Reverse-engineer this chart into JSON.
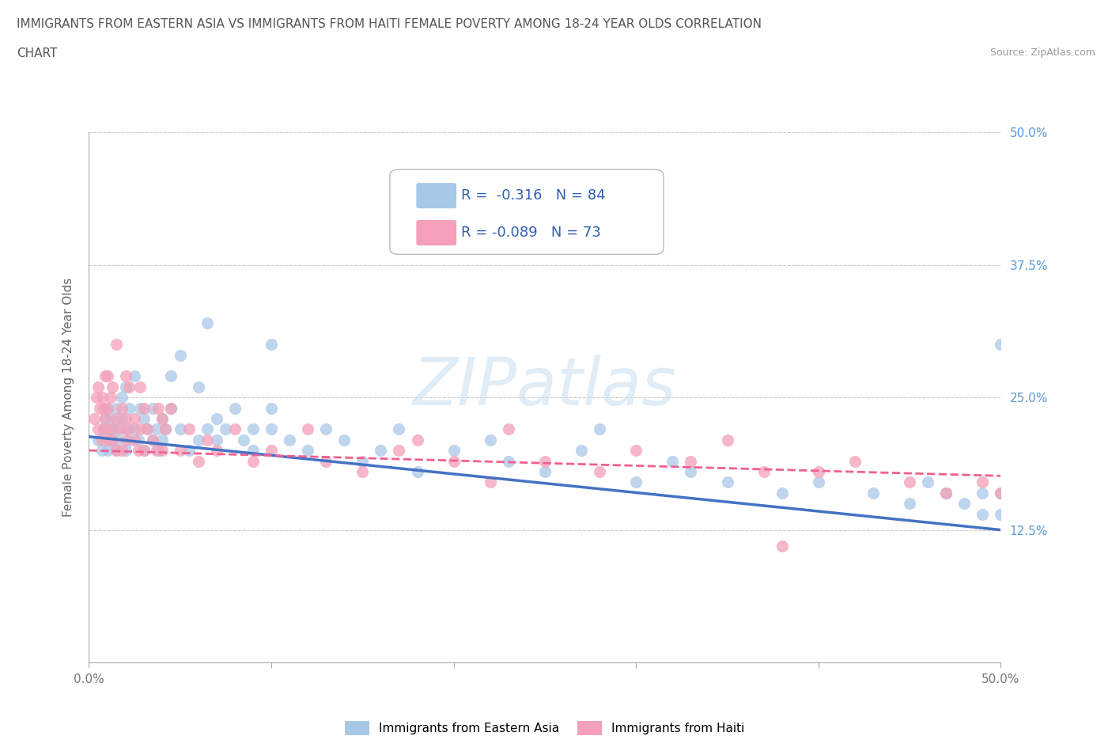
{
  "title_line1": "IMMIGRANTS FROM EASTERN ASIA VS IMMIGRANTS FROM HAITI FEMALE POVERTY AMONG 18-24 YEAR OLDS CORRELATION",
  "title_line2": "CHART",
  "source_text": "Source: ZipAtlas.com",
  "ylabel": "Female Poverty Among 18-24 Year Olds",
  "xlim": [
    0.0,
    0.5
  ],
  "ylim": [
    0.0,
    0.5
  ],
  "yticks": [
    0.0,
    0.125,
    0.25,
    0.375,
    0.5
  ],
  "right_yticklabels": [
    "",
    "12.5%",
    "25.0%",
    "37.5%",
    "50.0%"
  ],
  "hlines": [
    0.125,
    0.25,
    0.375,
    0.5
  ],
  "r_eastern_asia": -0.316,
  "n_eastern_asia": 84,
  "r_haiti": -0.089,
  "n_haiti": 73,
  "eastern_asia_color": "#a8c8e8",
  "haiti_color": "#f4a0b8",
  "eastern_asia_line_color": "#4472c4",
  "haiti_line_color": "#f06090",
  "watermark": "ZIPatlas",
  "eastern_asia_x": [
    0.005,
    0.007,
    0.008,
    0.009,
    0.01,
    0.01,
    0.01,
    0.012,
    0.012,
    0.013,
    0.015,
    0.015,
    0.015,
    0.016,
    0.018,
    0.018,
    0.02,
    0.02,
    0.02,
    0.022,
    0.022,
    0.025,
    0.025,
    0.027,
    0.028,
    0.03,
    0.03,
    0.032,
    0.035,
    0.035,
    0.037,
    0.038,
    0.04,
    0.04,
    0.042,
    0.045,
    0.045,
    0.05,
    0.05,
    0.055,
    0.06,
    0.06,
    0.065,
    0.065,
    0.07,
    0.07,
    0.075,
    0.08,
    0.085,
    0.09,
    0.09,
    0.1,
    0.1,
    0.1,
    0.11,
    0.12,
    0.13,
    0.14,
    0.15,
    0.16,
    0.17,
    0.18,
    0.2,
    0.22,
    0.23,
    0.25,
    0.27,
    0.28,
    0.3,
    0.32,
    0.33,
    0.35,
    0.38,
    0.4,
    0.43,
    0.45,
    0.46,
    0.47,
    0.48,
    0.49,
    0.49,
    0.5,
    0.5,
    0.5
  ],
  "eastern_asia_y": [
    0.21,
    0.2,
    0.22,
    0.23,
    0.2,
    0.22,
    0.24,
    0.21,
    0.23,
    0.22,
    0.2,
    0.22,
    0.24,
    0.21,
    0.23,
    0.25,
    0.2,
    0.22,
    0.26,
    0.21,
    0.24,
    0.22,
    0.27,
    0.21,
    0.24,
    0.2,
    0.23,
    0.22,
    0.21,
    0.24,
    0.22,
    0.2,
    0.21,
    0.23,
    0.22,
    0.24,
    0.27,
    0.22,
    0.29,
    0.2,
    0.21,
    0.26,
    0.22,
    0.32,
    0.21,
    0.23,
    0.22,
    0.24,
    0.21,
    0.2,
    0.22,
    0.22,
    0.24,
    0.3,
    0.21,
    0.2,
    0.22,
    0.21,
    0.19,
    0.2,
    0.22,
    0.18,
    0.2,
    0.21,
    0.19,
    0.18,
    0.2,
    0.22,
    0.17,
    0.19,
    0.18,
    0.17,
    0.16,
    0.17,
    0.16,
    0.15,
    0.17,
    0.16,
    0.15,
    0.14,
    0.16,
    0.16,
    0.14,
    0.3
  ],
  "haiti_x": [
    0.003,
    0.004,
    0.005,
    0.005,
    0.006,
    0.007,
    0.007,
    0.008,
    0.008,
    0.009,
    0.009,
    0.01,
    0.01,
    0.01,
    0.012,
    0.012,
    0.013,
    0.013,
    0.015,
    0.015,
    0.015,
    0.017,
    0.018,
    0.018,
    0.02,
    0.02,
    0.02,
    0.022,
    0.022,
    0.025,
    0.025,
    0.027,
    0.028,
    0.028,
    0.03,
    0.03,
    0.032,
    0.035,
    0.037,
    0.038,
    0.04,
    0.04,
    0.042,
    0.045,
    0.05,
    0.055,
    0.06,
    0.065,
    0.07,
    0.08,
    0.09,
    0.1,
    0.12,
    0.13,
    0.15,
    0.17,
    0.18,
    0.2,
    0.22,
    0.23,
    0.25,
    0.28,
    0.3,
    0.33,
    0.35,
    0.37,
    0.38,
    0.4,
    0.42,
    0.45,
    0.47,
    0.49,
    0.5
  ],
  "haiti_y": [
    0.23,
    0.25,
    0.22,
    0.26,
    0.24,
    0.21,
    0.25,
    0.22,
    0.24,
    0.23,
    0.27,
    0.21,
    0.24,
    0.27,
    0.22,
    0.25,
    0.21,
    0.26,
    0.2,
    0.23,
    0.3,
    0.22,
    0.2,
    0.24,
    0.21,
    0.23,
    0.27,
    0.22,
    0.26,
    0.21,
    0.23,
    0.2,
    0.22,
    0.26,
    0.2,
    0.24,
    0.22,
    0.21,
    0.2,
    0.24,
    0.2,
    0.23,
    0.22,
    0.24,
    0.2,
    0.22,
    0.19,
    0.21,
    0.2,
    0.22,
    0.19,
    0.2,
    0.22,
    0.19,
    0.18,
    0.2,
    0.21,
    0.19,
    0.17,
    0.22,
    0.19,
    0.18,
    0.2,
    0.19,
    0.21,
    0.18,
    0.11,
    0.18,
    0.19,
    0.17,
    0.16,
    0.17,
    0.16
  ]
}
